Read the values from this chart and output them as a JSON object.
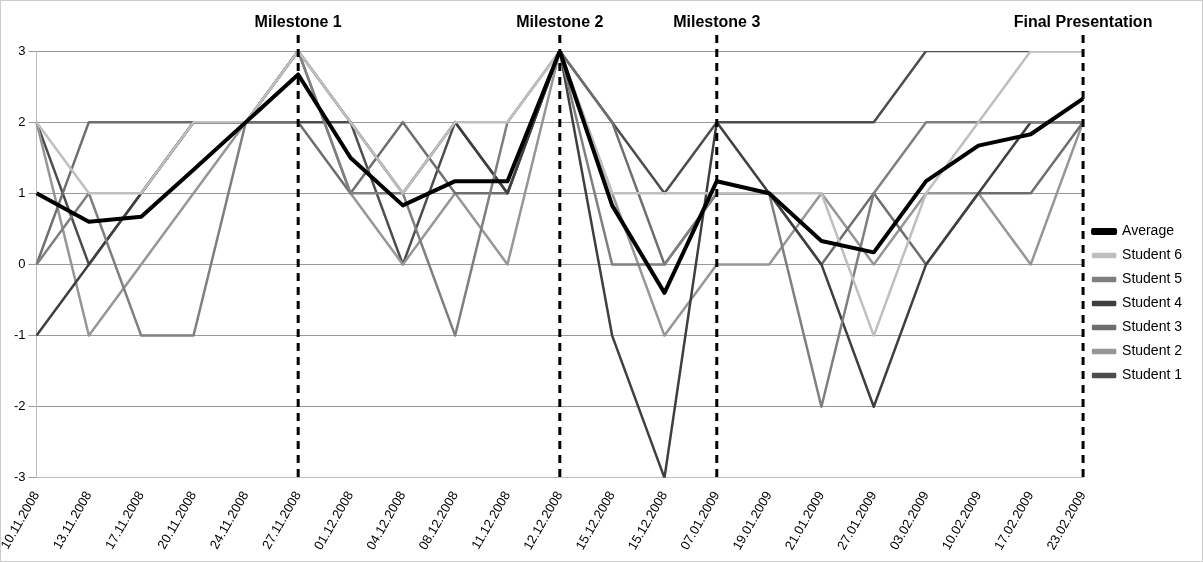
{
  "chart_data": {
    "type": "line",
    "categories": [
      "10.11.2008",
      "13.11.2008",
      "17.11.2008",
      "20.11.2008",
      "24.11.2008",
      "27.11.2008",
      "01.12.2008",
      "04.12.2008",
      "08.12.2008",
      "11.12.2008",
      "12.12.2008",
      "15.12.2008",
      "15.12.2008",
      "07.01.2009",
      "19.01.2009",
      "21.01.2009",
      "27.01.2009",
      "03.02.2009",
      "10.02.2009",
      "17.02.2009",
      "23.02.2009"
    ],
    "series": [
      {
        "name": "Student 1",
        "color": "#4d4d4d",
        "values": [
          2,
          0,
          1,
          2,
          2,
          2,
          2,
          0,
          2,
          1,
          3,
          2,
          1,
          2,
          2,
          2,
          2,
          3,
          3,
          3,
          3
        ]
      },
      {
        "name": "Student 2",
        "color": "#969696",
        "values": [
          2,
          -1,
          0,
          1,
          2,
          3,
          1,
          0,
          1,
          0,
          3,
          1,
          -1,
          0,
          0,
          1,
          0,
          1,
          1,
          0,
          2
        ]
      },
      {
        "name": "Student 3",
        "color": "#6e6e6e",
        "values": [
          0,
          2,
          2,
          2,
          2,
          2,
          1,
          2,
          1,
          1,
          3,
          2,
          0,
          1,
          1,
          0,
          1,
          0,
          1,
          1,
          2
        ]
      },
      {
        "name": "Student 4",
        "color": "#3f3f3f",
        "values": [
          -1,
          0,
          1,
          2,
          2,
          3,
          2,
          1,
          2,
          1,
          3,
          -1,
          -3,
          2,
          1,
          0,
          -2,
          0,
          1,
          2,
          2
        ]
      },
      {
        "name": "Student 5",
        "color": "#7f7f7f",
        "values": [
          0,
          1,
          -1,
          -1,
          2,
          3,
          1,
          1,
          -1,
          2,
          3,
          0,
          0,
          1,
          1,
          -2,
          1,
          2,
          2,
          2,
          2
        ]
      },
      {
        "name": "Student 6",
        "color": "#bfbfbf",
        "values": [
          2,
          1,
          1,
          2,
          2,
          3,
          2,
          1,
          2,
          2,
          3,
          1,
          1,
          1,
          1,
          1,
          -1,
          1,
          2,
          3,
          3
        ]
      },
      {
        "name": "Average",
        "color": "#000000",
        "values": [
          1,
          0.6,
          0.67,
          1.33,
          2,
          2.67,
          1.5,
          0.83,
          1.17,
          1.17,
          3,
          0.83,
          -0.4,
          1.17,
          1,
          0.33,
          0.17,
          1.17,
          1.67,
          1.83,
          2.33
        ]
      }
    ],
    "ylim": [
      -3,
      3
    ],
    "yticks": [
      -3,
      -2,
      -1,
      0,
      1,
      2,
      3
    ],
    "grid": "y",
    "legend": "right",
    "marker": "none",
    "line_style": "solid",
    "ref_lines": [
      {
        "axis": "x",
        "value": "27.11.2008",
        "label": "Milestone 1",
        "color": "#000000",
        "line_style": "dashed"
      },
      {
        "axis": "x",
        "value": "12.12.2008",
        "label": "Milestone 2",
        "color": "#000000",
        "line_style": "dashed"
      },
      {
        "axis": "x",
        "value": "07.01.2009",
        "label": "Milestone 3",
        "color": "#000000",
        "line_style": "dashed"
      },
      {
        "axis": "x",
        "value": "23.02.2009",
        "label": "Final Presentation",
        "color": "#000000",
        "line_style": "dashed"
      }
    ]
  }
}
